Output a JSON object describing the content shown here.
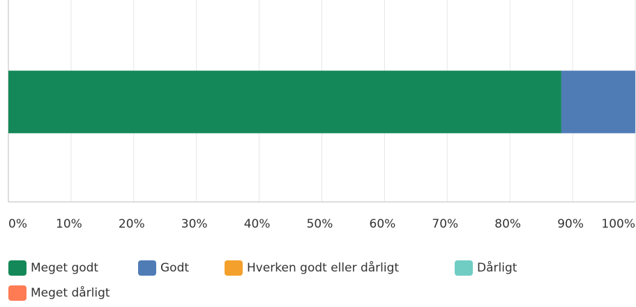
{
  "chart_data": {
    "type": "stacked-bar-horizontal",
    "categories": [
      null
    ],
    "series": [
      {
        "name": "Meget godt",
        "color": "#148858",
        "values": [
          88.2
        ]
      },
      {
        "name": "Godt",
        "color": "#507cb6",
        "values": [
          11.8
        ]
      },
      {
        "name": "Hverken godt eller dårligt",
        "color": "#f4a02c",
        "values": [
          0
        ]
      },
      {
        "name": "Dårligt",
        "color": "#6fcdc4",
        "values": [
          0
        ]
      },
      {
        "name": "Meget dårligt",
        "color": "#ff7b54",
        "values": [
          0
        ]
      }
    ],
    "xlim": [
      0,
      100
    ],
    "xticks": [
      {
        "value": 0,
        "label": "0%"
      },
      {
        "value": 10,
        "label": "10%"
      },
      {
        "value": 20,
        "label": "20%"
      },
      {
        "value": 30,
        "label": "30%"
      },
      {
        "value": 40,
        "label": "40%"
      },
      {
        "value": 50,
        "label": "50%"
      },
      {
        "value": 60,
        "label": "60%"
      },
      {
        "value": 70,
        "label": "70%"
      },
      {
        "value": 80,
        "label": "80%"
      },
      {
        "value": 90,
        "label": "90%"
      },
      {
        "value": 100,
        "label": "100%"
      }
    ],
    "grid": true,
    "legend": "bottom"
  }
}
